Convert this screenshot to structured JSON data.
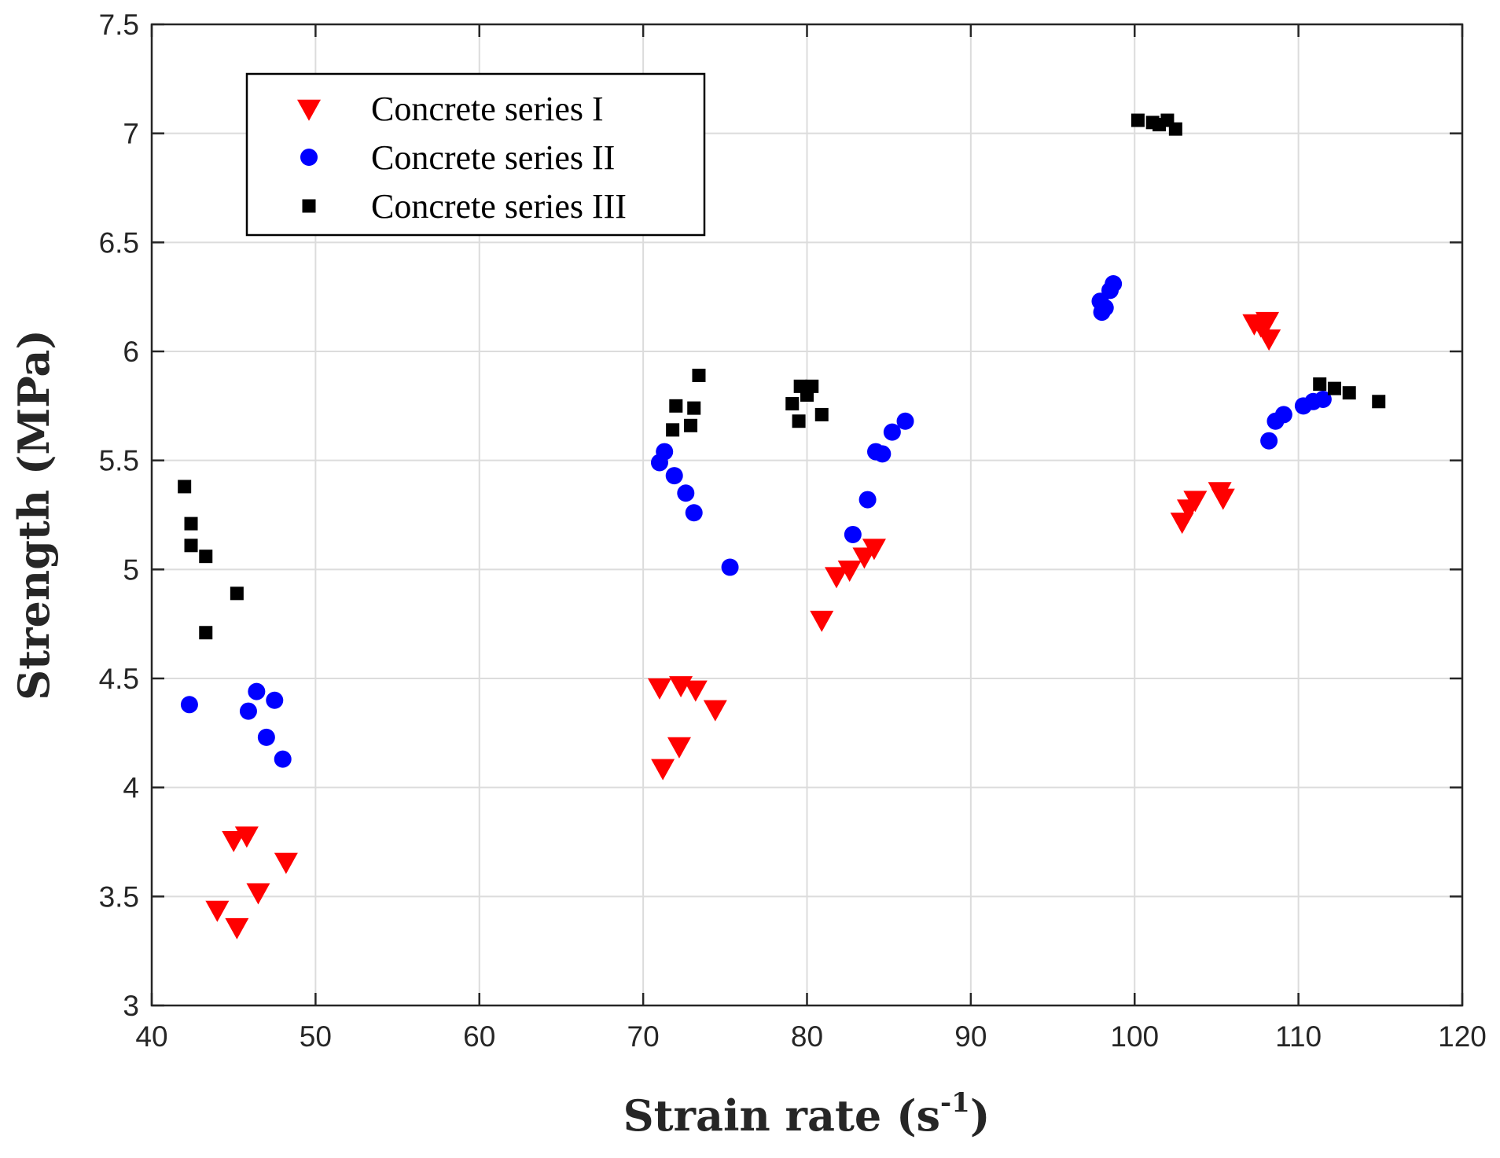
{
  "chart_data": {
    "type": "scatter",
    "xlabel": "Strain rate (s",
    "xlabel_superscript": "-1",
    "xlabel_suffix": ")",
    "ylabel": "Strength (MPa)",
    "xlim": [
      40,
      120
    ],
    "ylim": [
      3,
      7.5
    ],
    "x_ticks": [
      40,
      50,
      60,
      70,
      80,
      90,
      100,
      110,
      120
    ],
    "y_ticks": [
      3,
      3.5,
      4,
      4.5,
      5,
      5.5,
      6,
      6.5,
      7,
      7.5
    ],
    "y_tick_labels": [
      "3",
      "3.5",
      "4",
      "4.5",
      "5",
      "5.5",
      "6",
      "6.5",
      "7",
      "7.5"
    ],
    "grid": true,
    "legend_position": "top-left",
    "series": [
      {
        "name": "Concrete series I",
        "marker": "triangle-down",
        "color": "#ff0000",
        "points": [
          [
            44.0,
            3.44
          ],
          [
            45.0,
            3.76
          ],
          [
            45.8,
            3.78
          ],
          [
            45.2,
            3.36
          ],
          [
            46.5,
            3.52
          ],
          [
            48.2,
            3.66
          ],
          [
            71.0,
            4.46
          ],
          [
            72.3,
            4.47
          ],
          [
            73.2,
            4.45
          ],
          [
            74.4,
            4.36
          ],
          [
            71.2,
            4.09
          ],
          [
            72.2,
            4.19
          ],
          [
            80.9,
            4.77
          ],
          [
            81.8,
            4.97
          ],
          [
            82.6,
            5.0
          ],
          [
            83.5,
            5.06
          ],
          [
            84.1,
            5.1
          ],
          [
            102.9,
            5.22
          ],
          [
            103.3,
            5.28
          ],
          [
            103.7,
            5.32
          ],
          [
            105.2,
            5.36
          ],
          [
            105.4,
            5.33
          ],
          [
            107.3,
            6.13
          ],
          [
            107.7,
            6.12
          ],
          [
            108.1,
            6.14
          ],
          [
            108.2,
            6.06
          ]
        ]
      },
      {
        "name": "Concrete series II",
        "marker": "circle",
        "color": "#0000ff",
        "points": [
          [
            42.3,
            4.38
          ],
          [
            45.9,
            4.35
          ],
          [
            46.4,
            4.44
          ],
          [
            47.5,
            4.4
          ],
          [
            47.0,
            4.23
          ],
          [
            48.0,
            4.13
          ],
          [
            71.0,
            5.49
          ],
          [
            71.3,
            5.54
          ],
          [
            71.9,
            5.43
          ],
          [
            72.6,
            5.35
          ],
          [
            73.1,
            5.26
          ],
          [
            75.3,
            5.01
          ],
          [
            82.8,
            5.16
          ],
          [
            83.7,
            5.32
          ],
          [
            84.2,
            5.54
          ],
          [
            84.6,
            5.53
          ],
          [
            85.2,
            5.63
          ],
          [
            86.0,
            5.68
          ],
          [
            97.9,
            6.23
          ],
          [
            98.0,
            6.18
          ],
          [
            98.2,
            6.2
          ],
          [
            98.5,
            6.28
          ],
          [
            98.7,
            6.31
          ],
          [
            108.2,
            5.59
          ],
          [
            108.6,
            5.68
          ],
          [
            109.1,
            5.71
          ],
          [
            110.3,
            5.75
          ],
          [
            110.9,
            5.77
          ],
          [
            111.5,
            5.78
          ]
        ]
      },
      {
        "name": "Concrete series III",
        "marker": "square",
        "color": "#000000",
        "points": [
          [
            42.0,
            5.38
          ],
          [
            42.4,
            5.21
          ],
          [
            42.4,
            5.11
          ],
          [
            43.3,
            5.06
          ],
          [
            45.2,
            4.89
          ],
          [
            43.3,
            4.71
          ],
          [
            71.8,
            5.64
          ],
          [
            72.0,
            5.75
          ],
          [
            72.9,
            5.66
          ],
          [
            73.1,
            5.74
          ],
          [
            73.4,
            5.89
          ],
          [
            79.1,
            5.76
          ],
          [
            79.5,
            5.68
          ],
          [
            79.6,
            5.84
          ],
          [
            80.0,
            5.8
          ],
          [
            80.3,
            5.84
          ],
          [
            80.9,
            5.71
          ],
          [
            100.2,
            7.06
          ],
          [
            101.1,
            7.05
          ],
          [
            101.5,
            7.04
          ],
          [
            102.0,
            7.06
          ],
          [
            102.5,
            7.02
          ],
          [
            111.3,
            5.85
          ],
          [
            112.2,
            5.83
          ],
          [
            113.1,
            5.81
          ],
          [
            114.9,
            5.77
          ]
        ]
      }
    ]
  }
}
